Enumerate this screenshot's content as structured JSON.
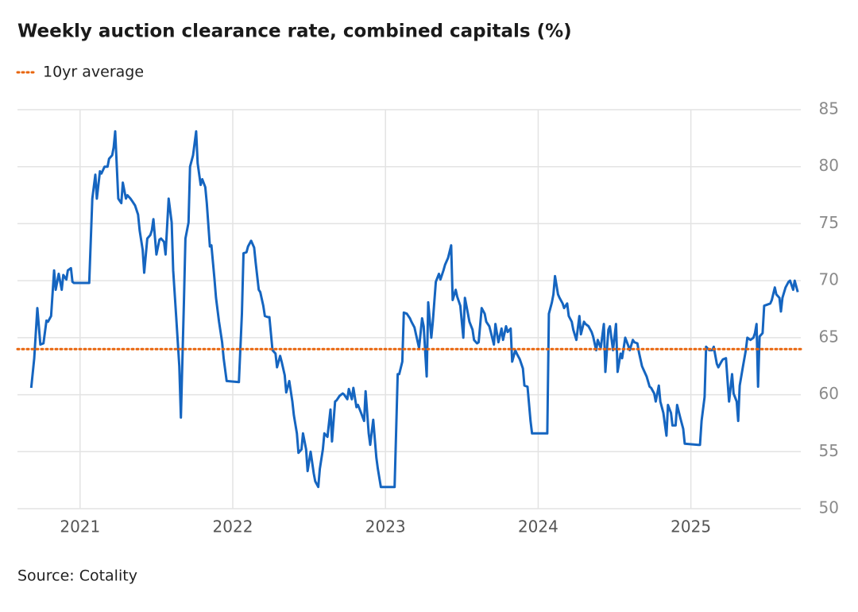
{
  "chart_data": {
    "type": "line",
    "title": "Weekly auction clearance rate, combined capitals (%)",
    "source": "Source: Cotality",
    "xlim": [
      2020.59,
      2025.72
    ],
    "xticks": [
      2021,
      2022,
      2023,
      2024,
      2025
    ],
    "ylim": [
      50,
      85
    ],
    "yticks": [
      50,
      55,
      60,
      65,
      70,
      75,
      80,
      85
    ],
    "grid": true,
    "reference_line": {
      "name": "10yr average",
      "value": 64,
      "color": "#e8650d",
      "style": "dotted"
    },
    "x": [
      2020.68,
      2020.7,
      2020.72,
      2020.74,
      2020.76,
      2020.78,
      2020.79,
      2020.81,
      2020.83,
      2020.84,
      2020.86,
      2020.88,
      2020.89,
      2020.91,
      2020.92,
      2020.94,
      2020.95,
      2020.96,
      2021.06,
      2021.08,
      2021.1,
      2021.11,
      2021.13,
      2021.14,
      2021.16,
      2021.18,
      2021.19,
      2021.21,
      2021.22,
      2021.23,
      2021.25,
      2021.27,
      2021.28,
      2021.3,
      2021.31,
      2021.33,
      2021.34,
      2021.36,
      2021.38,
      2021.39,
      2021.41,
      2021.42,
      2021.44,
      2021.46,
      2021.47,
      2021.48,
      2021.5,
      2021.52,
      2021.53,
      2021.55,
      2021.56,
      2021.58,
      2021.6,
      2021.61,
      2021.63,
      2021.65,
      2021.66,
      2021.68,
      2021.69,
      2021.71,
      2021.72,
      2021.74,
      2021.76,
      2021.77,
      2021.79,
      2021.8,
      2021.82,
      2021.83,
      2021.85,
      2021.86,
      2021.88,
      2021.89,
      2021.91,
      2021.93,
      2021.94,
      2021.96,
      2022.04,
      2022.06,
      2022.07,
      2022.09,
      2022.1,
      2022.12,
      2022.14,
      2022.15,
      2022.17,
      2022.18,
      2022.2,
      2022.21,
      2022.23,
      2022.24,
      2022.26,
      2022.28,
      2022.29,
      2022.31,
      2022.32,
      2022.34,
      2022.35,
      2022.37,
      2022.39,
      2022.4,
      2022.42,
      2022.43,
      2022.45,
      2022.46,
      2022.48,
      2022.49,
      2022.51,
      2022.53,
      2022.54,
      2022.56,
      2022.57,
      2022.59,
      2022.6,
      2022.62,
      2022.64,
      2022.65,
      2022.67,
      2022.68,
      2022.7,
      2022.72,
      2022.73,
      2022.75,
      2022.76,
      2022.78,
      2022.79,
      2022.81,
      2022.82,
      2022.84,
      2022.86,
      2022.87,
      2022.89,
      2022.9,
      2022.92,
      2022.94,
      2022.95,
      2022.97,
      2023.06,
      2023.08,
      2023.09,
      2023.11,
      2023.12,
      2023.14,
      2023.16,
      2023.17,
      2023.19,
      2023.2,
      2023.22,
      2023.24,
      2023.25,
      2023.27,
      2023.28,
      2023.3,
      2023.31,
      2023.33,
      2023.35,
      2023.36,
      2023.38,
      2023.39,
      2023.41,
      2023.43,
      2023.44,
      2023.46,
      2023.47,
      2023.49,
      2023.51,
      2023.52,
      2023.54,
      2023.55,
      2023.57,
      2023.58,
      2023.6,
      2023.61,
      2023.63,
      2023.65,
      2023.66,
      2023.68,
      2023.69,
      2023.71,
      2023.72,
      2023.74,
      2023.76,
      2023.77,
      2023.79,
      2023.8,
      2023.82,
      2023.83,
      2023.85,
      2023.86,
      2023.88,
      2023.9,
      2023.91,
      2023.93,
      2023.95,
      2023.96,
      2024.06,
      2024.07,
      2024.09,
      2024.1,
      2024.11,
      2024.13,
      2024.14,
      2024.16,
      2024.17,
      2024.19,
      2024.2,
      2024.22,
      2024.23,
      2024.25,
      2024.27,
      2024.28,
      2024.3,
      2024.31,
      2024.33,
      2024.35,
      2024.36,
      2024.38,
      2024.39,
      2024.41,
      2024.43,
      2024.44,
      2024.46,
      2024.47,
      2024.49,
      2024.51,
      2024.52,
      2024.54,
      2024.55,
      2024.57,
      2024.59,
      2024.6,
      2024.62,
      2024.63,
      2024.65,
      2024.66,
      2024.68,
      2024.69,
      2024.71,
      2024.73,
      2024.74,
      2024.76,
      2024.77,
      2024.79,
      2024.8,
      2024.82,
      2024.84,
      2024.85,
      2024.87,
      2024.88,
      2024.9,
      2024.91,
      2024.93,
      2024.95,
      2024.96,
      2025.05,
      2025.06,
      2025.07,
      2025.09,
      2025.1,
      2025.12,
      2025.14,
      2025.15,
      2025.17,
      2025.18,
      2025.2,
      2025.21,
      2025.23,
      2025.25,
      2025.27,
      2025.28,
      2025.3,
      2025.31,
      2025.32,
      2025.34,
      2025.36,
      2025.37,
      2025.39,
      2025.41,
      2025.42,
      2025.43,
      2025.44,
      2025.45,
      2025.47,
      2025.48,
      2025.5,
      2025.52,
      2025.53,
      2025.55,
      2025.56,
      2025.58,
      2025.59,
      2025.6,
      2025.62,
      2025.64,
      2025.65,
      2025.67,
      2025.68,
      2025.7
    ],
    "series": [
      {
        "color": "#1565c0",
        "values": [
          60.6,
          63.2,
          67.6,
          64.4,
          64.5,
          66.5,
          66.4,
          66.9,
          70.9,
          69.2,
          70.6,
          69.2,
          70.5,
          70.1,
          70.9,
          71.1,
          69.9,
          69.8,
          69.8,
          77.2,
          79.3,
          77.2,
          79.6,
          79.4,
          80.0,
          80.0,
          80.7,
          81.0,
          81.7,
          83.1,
          77.2,
          76.8,
          78.6,
          77.2,
          77.5,
          77.2,
          77.0,
          76.6,
          75.8,
          74.4,
          72.7,
          70.7,
          73.7,
          74.0,
          74.4,
          75.4,
          72.3,
          73.6,
          73.7,
          73.4,
          72.3,
          77.2,
          75.1,
          70.9,
          66.7,
          62.5,
          58.0,
          68.1,
          73.7,
          75.1,
          80.0,
          81.0,
          83.1,
          80.3,
          78.4,
          78.9,
          78.2,
          76.8,
          73.0,
          73.1,
          70.2,
          68.5,
          66.4,
          64.6,
          63.2,
          61.2,
          61.1,
          67.1,
          72.4,
          72.5,
          73.0,
          73.5,
          72.9,
          71.6,
          69.2,
          69.0,
          67.8,
          66.9,
          66.8,
          66.8,
          63.9,
          63.6,
          62.4,
          63.4,
          62.9,
          61.7,
          60.2,
          61.2,
          59.4,
          58.2,
          56.6,
          54.9,
          55.2,
          56.6,
          55.2,
          53.3,
          55.0,
          53.1,
          52.4,
          51.9,
          53.5,
          55.2,
          56.6,
          56.3,
          58.7,
          55.9,
          59.4,
          59.5,
          59.9,
          60.1,
          60.0,
          59.6,
          60.5,
          59.6,
          60.6,
          58.9,
          59.1,
          58.4,
          57.7,
          60.3,
          56.6,
          55.6,
          57.8,
          54.5,
          53.5,
          51.9,
          51.9,
          61.8,
          61.8,
          62.9,
          67.2,
          67.1,
          66.7,
          66.4,
          65.9,
          65.3,
          64.1,
          66.7,
          66.0,
          61.6,
          68.1,
          65.0,
          66.4,
          69.9,
          70.6,
          70.1,
          70.9,
          71.4,
          72.0,
          73.1,
          68.3,
          69.2,
          68.6,
          67.8,
          65.0,
          68.5,
          67.1,
          66.4,
          65.7,
          64.8,
          64.5,
          64.6,
          67.6,
          67.1,
          66.4,
          66.0,
          65.5,
          64.4,
          66.2,
          64.6,
          65.8,
          64.8,
          66.0,
          65.5,
          65.8,
          62.9,
          63.9,
          63.6,
          63.1,
          62.3,
          60.8,
          60.7,
          57.7,
          56.6,
          56.6,
          67.1,
          68.1,
          68.8,
          70.4,
          68.8,
          68.5,
          68.0,
          67.6,
          68.0,
          66.9,
          66.4,
          65.7,
          64.8,
          66.9,
          65.3,
          66.4,
          66.2,
          66.0,
          65.5,
          65.1,
          63.9,
          64.8,
          64.1,
          66.2,
          62.0,
          65.7,
          66.0,
          63.9,
          66.2,
          62.0,
          63.6,
          63.2,
          65.0,
          64.3,
          63.9,
          64.8,
          64.6,
          64.5,
          63.7,
          62.5,
          62.2,
          61.6,
          60.7,
          60.6,
          60.1,
          59.4,
          60.8,
          59.4,
          58.4,
          56.4,
          59.1,
          58.4,
          57.3,
          57.3,
          59.1,
          58.0,
          57.0,
          55.7,
          55.6,
          55.6,
          57.7,
          59.8,
          64.2,
          63.9,
          63.9,
          64.2,
          62.7,
          62.4,
          62.9,
          63.1,
          63.2,
          59.4,
          61.8,
          60.1,
          59.4,
          57.7,
          60.8,
          62.4,
          63.9,
          65.0,
          64.8,
          65.0,
          65.4,
          66.2,
          60.7,
          65.1,
          65.4,
          67.8,
          67.9,
          68.0,
          68.3,
          69.4,
          68.8,
          68.5,
          67.3,
          68.5,
          69.4,
          69.9,
          70.0,
          69.2,
          70.0,
          69.0
        ]
      }
    ]
  }
}
